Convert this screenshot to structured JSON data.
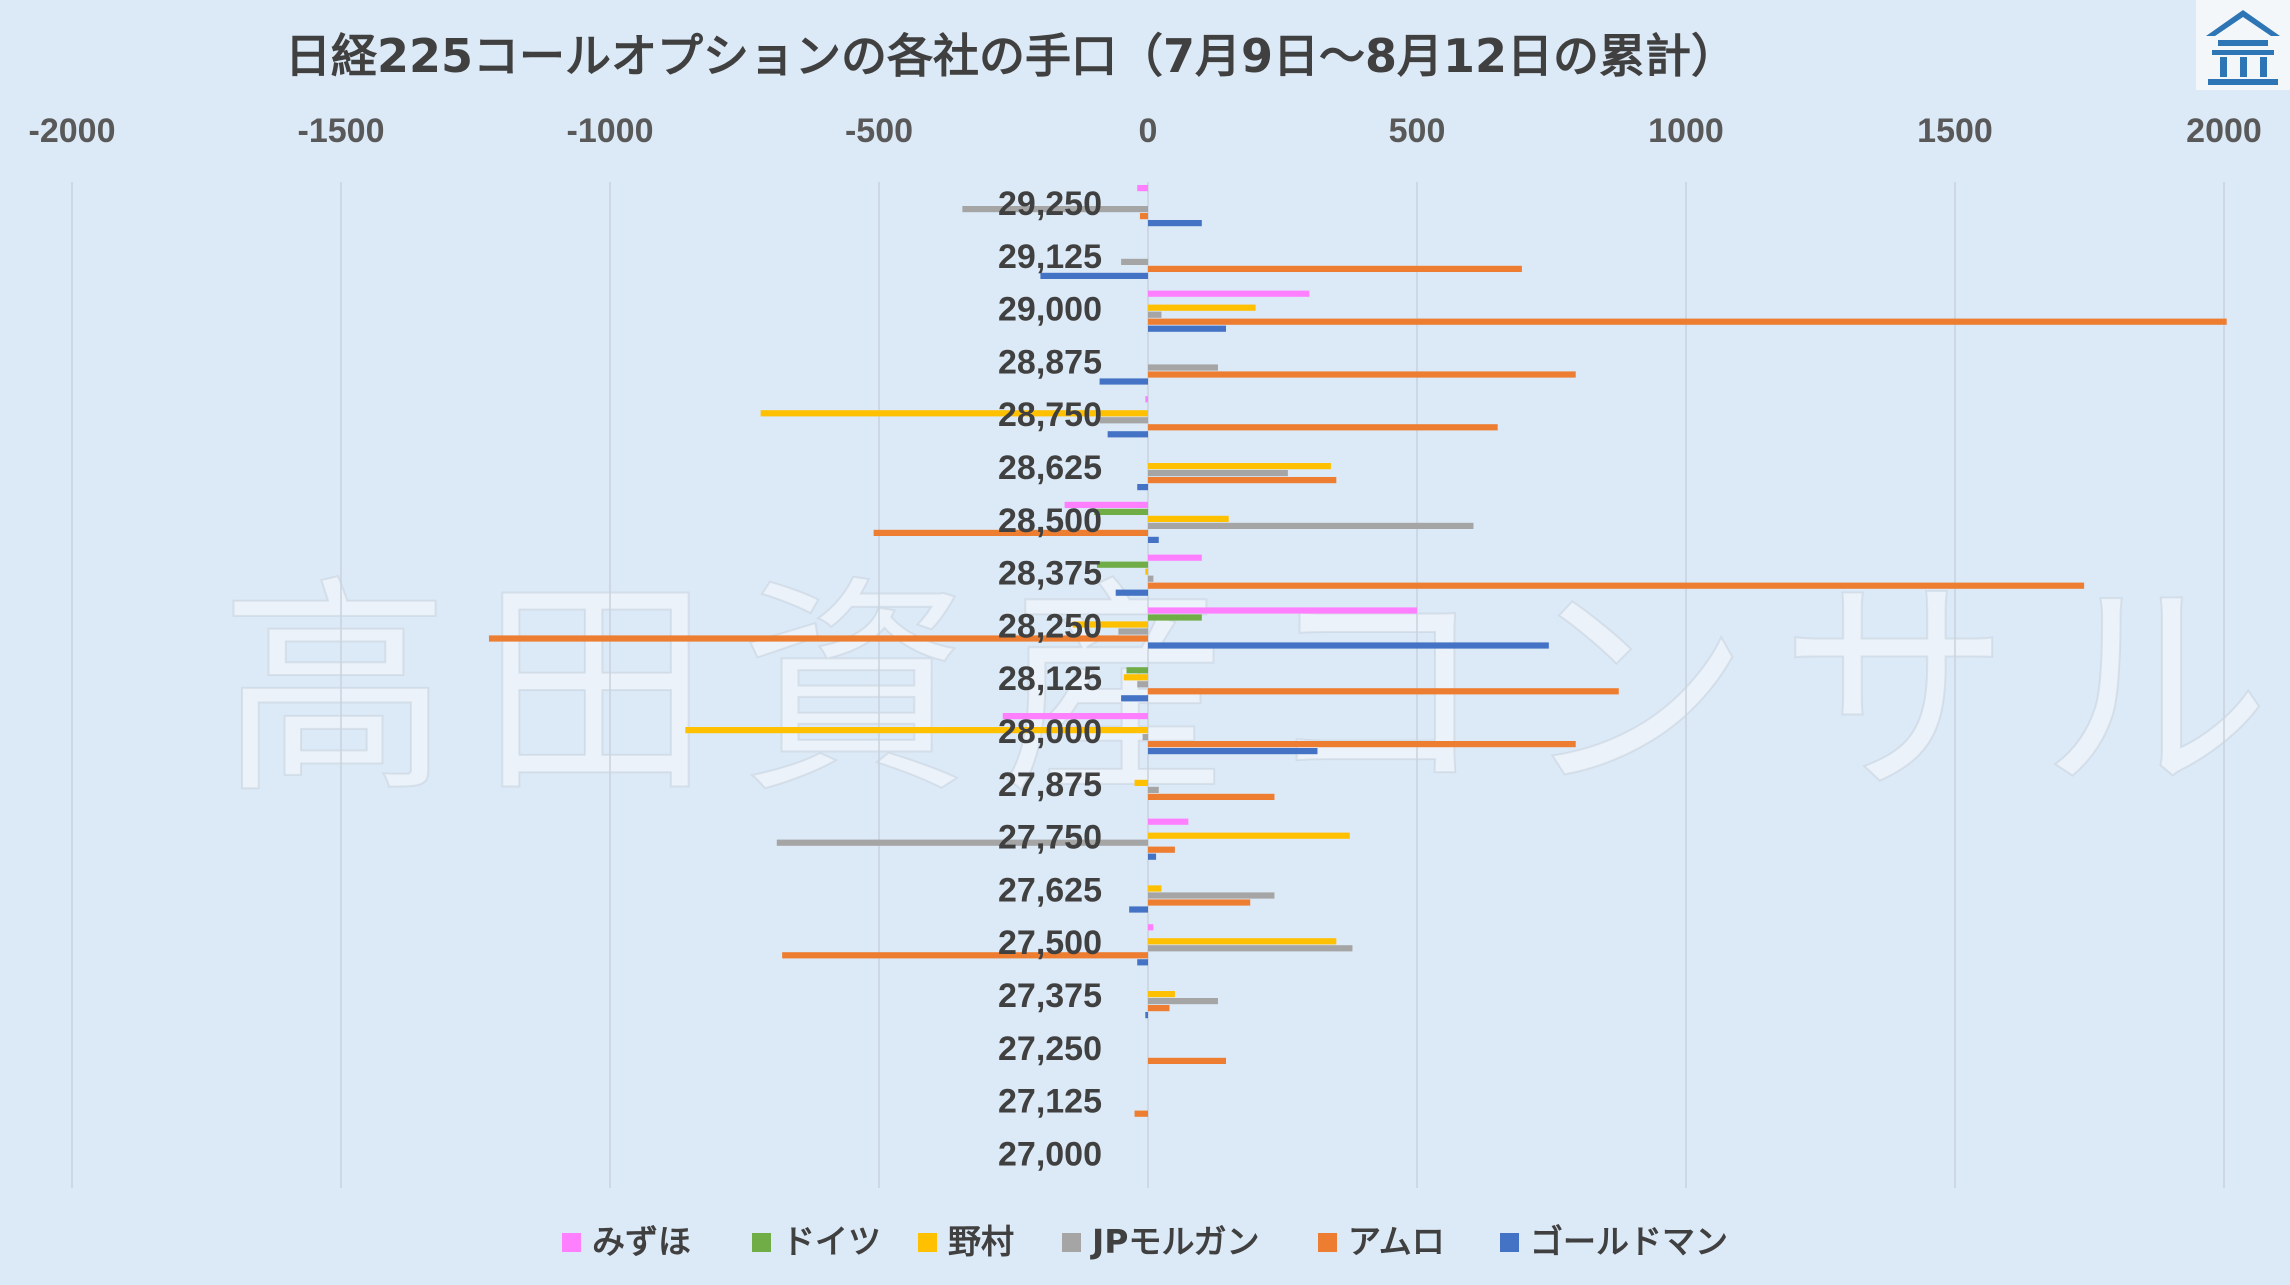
{
  "chart_data": {
    "type": "bar",
    "orientation": "horizontal",
    "title": "日経225コールオプションの各社の手口（7月9日～8月12日の累計）",
    "watermark": "高田資産コンサル",
    "logo_icon": "building-logo-icon",
    "xlim": [
      -2000,
      2000
    ],
    "x_ticks": [
      "-2000",
      "-1500",
      "-1000",
      "-500",
      "0",
      "500",
      "1000",
      "1500",
      "2000"
    ],
    "x_tick_values": [
      -2000,
      -1500,
      -1000,
      -500,
      0,
      500,
      1000,
      1500,
      2000
    ],
    "x_axis_position": "top",
    "grid": true,
    "legend_position": "bottom",
    "categories": [
      "29,250",
      "29,125",
      "29,000",
      "28,875",
      "28,750",
      "28,625",
      "28,500",
      "28,375",
      "28,250",
      "28,125",
      "28,000",
      "27,875",
      "27,750",
      "27,625",
      "27,500",
      "27,375",
      "27,250",
      "27,125",
      "27,000"
    ],
    "series": [
      {
        "name": "みずほ",
        "color": "#ff80ff",
        "values": [
          -20,
          0,
          300,
          0,
          -5,
          0,
          -155,
          100,
          500,
          0,
          -270,
          0,
          75,
          0,
          10,
          0,
          0,
          0,
          0
        ]
      },
      {
        "name": "ドイツ",
        "color": "#70ad47",
        "values": [
          0,
          0,
          0,
          0,
          0,
          0,
          -100,
          -95,
          100,
          -40,
          0,
          0,
          0,
          0,
          0,
          0,
          0,
          0,
          0
        ]
      },
      {
        "name": "野村",
        "color": "#ffc000",
        "values": [
          0,
          0,
          200,
          0,
          -720,
          340,
          150,
          -5,
          -140,
          -45,
          -860,
          -25,
          375,
          25,
          350,
          50,
          0,
          0,
          0
        ]
      },
      {
        "name": "JPモルガン",
        "color": "#a5a5a5",
        "values": [
          -345,
          -50,
          25,
          130,
          -90,
          260,
          605,
          10,
          -55,
          -20,
          -10,
          20,
          -690,
          235,
          380,
          130,
          0,
          0,
          0
        ]
      },
      {
        "name": "アムロ",
        "color": "#ed7d31",
        "values": [
          -15,
          695,
          2005,
          795,
          650,
          350,
          -510,
          1740,
          -1225,
          875,
          795,
          235,
          50,
          190,
          -680,
          40,
          145,
          -25,
          0
        ]
      },
      {
        "name": "ゴールドマン",
        "color": "#4472c4",
        "values": [
          100,
          -200,
          145,
          -90,
          -75,
          -20,
          20,
          -60,
          745,
          -50,
          315,
          0,
          15,
          -35,
          -20,
          -5,
          0,
          0,
          0
        ]
      }
    ]
  }
}
